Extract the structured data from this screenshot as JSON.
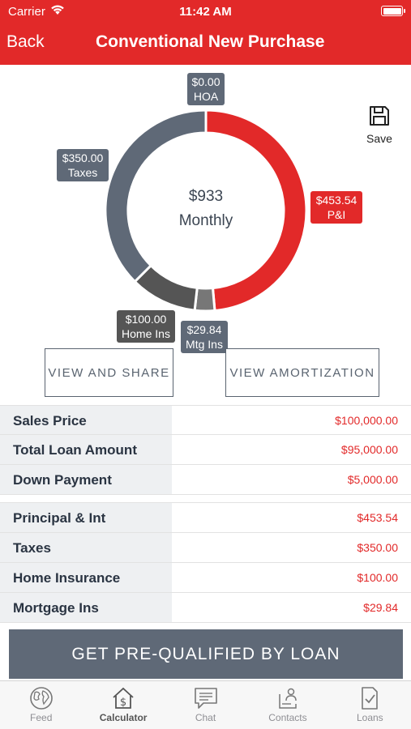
{
  "status_bar": {
    "carrier": "Carrier",
    "time": "11:42 AM"
  },
  "nav": {
    "back_label": "Back",
    "title": "Conventional New Purchase"
  },
  "chart_data": {
    "type": "pie",
    "center_amount": "$933",
    "center_label": "Monthly",
    "slices": [
      {
        "name": "HOA",
        "value": 0.0,
        "amount_label": "$0.00",
        "color": "#5f6977"
      },
      {
        "name": "P&I",
        "value": 453.54,
        "amount_label": "$453.54",
        "color": "#e22929"
      },
      {
        "name": "Mtg Ins",
        "value": 29.84,
        "amount_label": "$29.84",
        "color": "#777777"
      },
      {
        "name": "Home Ins",
        "value": 100.0,
        "amount_label": "$100.00",
        "color": "#555555"
      },
      {
        "name": "Taxes",
        "value": 350.0,
        "amount_label": "$350.00",
        "color": "#5f6977"
      }
    ]
  },
  "save": {
    "label": "Save",
    "icon": "floppy-disk-icon"
  },
  "actions": {
    "view_and_share": "VIEW AND SHARE",
    "view_amortization": "VIEW AMORTIZATION"
  },
  "loan_rows": [
    {
      "label": "Sales Price",
      "value": "$100,000.00"
    },
    {
      "label": "Total Loan Amount",
      "value": "$95,000.00"
    },
    {
      "label": "Down Payment",
      "value": "$5,000.00"
    }
  ],
  "payment_rows": [
    {
      "label": "Principal & Int",
      "value": "$453.54"
    },
    {
      "label": "Taxes",
      "value": "$350.00"
    },
    {
      "label": "Home Insurance",
      "value": "$100.00"
    },
    {
      "label": "Mortgage Ins",
      "value": "$29.84"
    }
  ],
  "cta": {
    "label": "GET PRE-QUALIFIED BY LOAN"
  },
  "tabs": [
    {
      "label": "Feed",
      "icon": "globe-icon",
      "active": false
    },
    {
      "label": "Calculator",
      "icon": "house-dollar-icon",
      "active": true
    },
    {
      "label": "Chat",
      "icon": "chat-bubble-icon",
      "active": false
    },
    {
      "label": "Contacts",
      "icon": "contacts-icon",
      "active": false
    },
    {
      "label": "Loans",
      "icon": "document-check-icon",
      "active": false
    }
  ],
  "colors": {
    "brand_red": "#e22929",
    "slate": "#5f6977",
    "text_dark": "#2a3442"
  }
}
